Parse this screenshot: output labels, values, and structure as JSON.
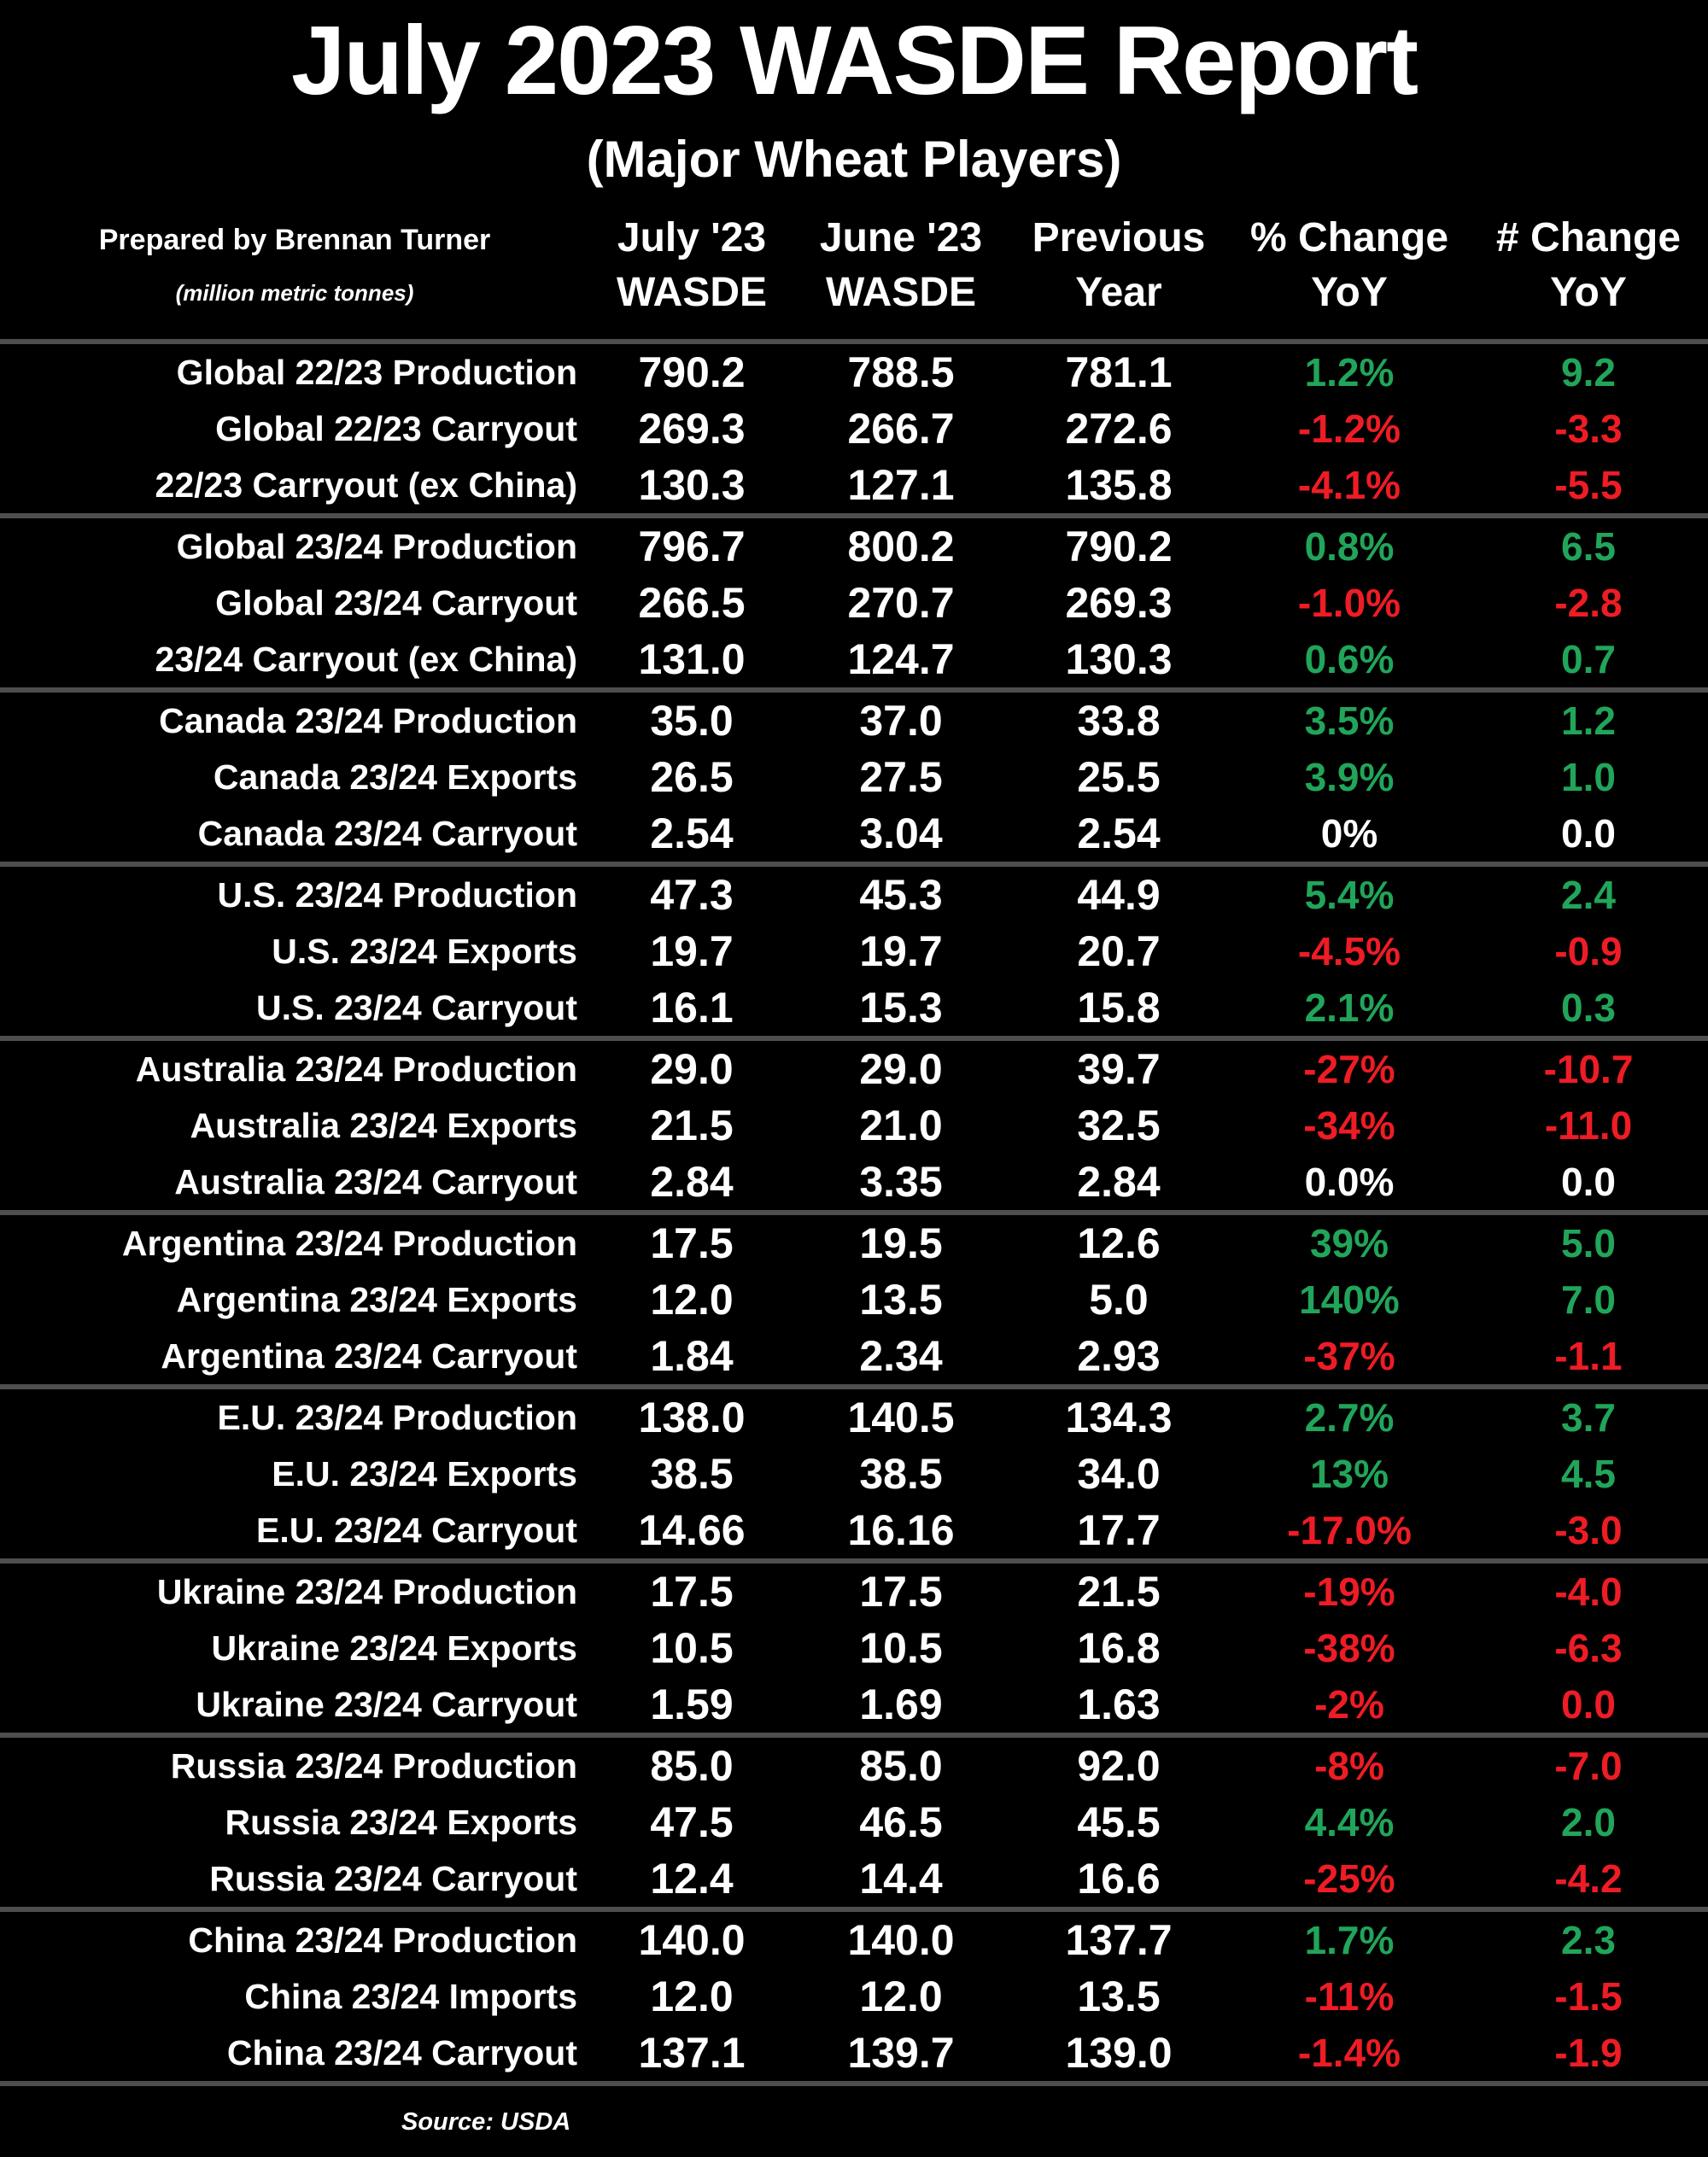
{
  "title": "July 2023 WASDE Report",
  "subtitle": "(Major Wheat Players)",
  "prepared_by": "Prepared by Brennan Turner",
  "units_note": "(million metric tonnes)",
  "source_note": "Source: USDA",
  "colors": {
    "background": "#000000",
    "text": "#ffffff",
    "positive": "#21a55a",
    "negative": "#ee1c25",
    "separator": "#4e4e4e"
  },
  "chart_data": {
    "type": "table",
    "title": "July 2023 WASDE Report (Major Wheat Players)",
    "units": "million metric tonnes",
    "column_headers": [
      {
        "line1": "July '23",
        "line2": "WASDE"
      },
      {
        "line1": "June '23",
        "line2": "WASDE"
      },
      {
        "line1": "Previous",
        "line2": "Year"
      },
      {
        "line1": "% Change",
        "line2": "YoY"
      },
      {
        "line1": "# Change",
        "line2": "YoY"
      }
    ],
    "groups": [
      {
        "rows": [
          {
            "label": "Global 22/23 Production",
            "july": "790.2",
            "june": "788.5",
            "prev": "781.1",
            "pct_change": "1.2%",
            "num_change": "9.2",
            "trend": "up"
          },
          {
            "label": "Global 22/23 Carryout",
            "july": "269.3",
            "june": "266.7",
            "prev": "272.6",
            "pct_change": "-1.2%",
            "num_change": "-3.3",
            "trend": "down"
          },
          {
            "label": "22/23 Carryout (ex China)",
            "july": "130.3",
            "june": "127.1",
            "prev": "135.8",
            "pct_change": "-4.1%",
            "num_change": "-5.5",
            "trend": "down"
          }
        ]
      },
      {
        "rows": [
          {
            "label": "Global 23/24 Production",
            "july": "796.7",
            "june": "800.2",
            "prev": "790.2",
            "pct_change": "0.8%",
            "num_change": "6.5",
            "trend": "up"
          },
          {
            "label": "Global 23/24 Carryout",
            "july": "266.5",
            "june": "270.7",
            "prev": "269.3",
            "pct_change": "-1.0%",
            "num_change": "-2.8",
            "trend": "down"
          },
          {
            "label": "23/24 Carryout (ex China)",
            "july": "131.0",
            "june": "124.7",
            "prev": "130.3",
            "pct_change": "0.6%",
            "num_change": "0.7",
            "trend": "up"
          }
        ]
      },
      {
        "rows": [
          {
            "label": "Canada 23/24 Production",
            "july": "35.0",
            "june": "37.0",
            "prev": "33.8",
            "pct_change": "3.5%",
            "num_change": "1.2",
            "trend": "up"
          },
          {
            "label": "Canada 23/24 Exports",
            "july": "26.5",
            "june": "27.5",
            "prev": "25.5",
            "pct_change": "3.9%",
            "num_change": "1.0",
            "trend": "up"
          },
          {
            "label": "Canada 23/24 Carryout",
            "july": "2.54",
            "june": "3.04",
            "prev": "2.54",
            "pct_change": "0%",
            "num_change": "0.0",
            "trend": "flat"
          }
        ]
      },
      {
        "rows": [
          {
            "label": "U.S. 23/24 Production",
            "july": "47.3",
            "june": "45.3",
            "prev": "44.9",
            "pct_change": "5.4%",
            "num_change": "2.4",
            "trend": "up"
          },
          {
            "label": "U.S. 23/24 Exports",
            "july": "19.7",
            "june": "19.7",
            "prev": "20.7",
            "pct_change": "-4.5%",
            "num_change": "-0.9",
            "trend": "down"
          },
          {
            "label": "U.S. 23/24 Carryout",
            "july": "16.1",
            "june": "15.3",
            "prev": "15.8",
            "pct_change": "2.1%",
            "num_change": "0.3",
            "trend": "up"
          }
        ]
      },
      {
        "rows": [
          {
            "label": "Australia 23/24 Production",
            "july": "29.0",
            "june": "29.0",
            "prev": "39.7",
            "pct_change": "-27%",
            "num_change": "-10.7",
            "trend": "down"
          },
          {
            "label": "Australia 23/24 Exports",
            "july": "21.5",
            "june": "21.0",
            "prev": "32.5",
            "pct_change": "-34%",
            "num_change": "-11.0",
            "trend": "down"
          },
          {
            "label": "Australia 23/24 Carryout",
            "july": "2.84",
            "june": "3.35",
            "prev": "2.84",
            "pct_change": "0.0%",
            "num_change": "0.0",
            "trend": "flat"
          }
        ]
      },
      {
        "rows": [
          {
            "label": "Argentina 23/24 Production",
            "july": "17.5",
            "june": "19.5",
            "prev": "12.6",
            "pct_change": "39%",
            "num_change": "5.0",
            "trend": "up"
          },
          {
            "label": "Argentina 23/24 Exports",
            "july": "12.0",
            "june": "13.5",
            "prev": "5.0",
            "pct_change": "140%",
            "num_change": "7.0",
            "trend": "up"
          },
          {
            "label": "Argentina 23/24 Carryout",
            "july": "1.84",
            "june": "2.34",
            "prev": "2.93",
            "pct_change": "-37%",
            "num_change": "-1.1",
            "trend": "down"
          }
        ]
      },
      {
        "rows": [
          {
            "label": "E.U. 23/24 Production",
            "july": "138.0",
            "june": "140.5",
            "prev": "134.3",
            "pct_change": "2.7%",
            "num_change": "3.7",
            "trend": "up"
          },
          {
            "label": "E.U. 23/24 Exports",
            "july": "38.5",
            "june": "38.5",
            "prev": "34.0",
            "pct_change": "13%",
            "num_change": "4.5",
            "trend": "up"
          },
          {
            "label": "E.U. 23/24 Carryout",
            "july": "14.66",
            "june": "16.16",
            "prev": "17.7",
            "pct_change": "-17.0%",
            "num_change": "-3.0",
            "trend": "down"
          }
        ]
      },
      {
        "rows": [
          {
            "label": "Ukraine 23/24 Production",
            "july": "17.5",
            "june": "17.5",
            "prev": "21.5",
            "pct_change": "-19%",
            "num_change": "-4.0",
            "trend": "down"
          },
          {
            "label": "Ukraine 23/24 Exports",
            "july": "10.5",
            "june": "10.5",
            "prev": "16.8",
            "pct_change": "-38%",
            "num_change": "-6.3",
            "trend": "down"
          },
          {
            "label": "Ukraine 23/24 Carryout",
            "july": "1.59",
            "june": "1.69",
            "prev": "1.63",
            "pct_change": "-2%",
            "num_change": "0.0",
            "trend": "down"
          }
        ]
      },
      {
        "rows": [
          {
            "label": "Russia 23/24 Production",
            "july": "85.0",
            "june": "85.0",
            "prev": "92.0",
            "pct_change": "-8%",
            "num_change": "-7.0",
            "trend": "down"
          },
          {
            "label": "Russia 23/24 Exports",
            "july": "47.5",
            "june": "46.5",
            "prev": "45.5",
            "pct_change": "4.4%",
            "num_change": "2.0",
            "trend": "up"
          },
          {
            "label": "Russia 23/24 Carryout",
            "july": "12.4",
            "june": "14.4",
            "prev": "16.6",
            "pct_change": "-25%",
            "num_change": "-4.2",
            "trend": "down"
          }
        ]
      },
      {
        "rows": [
          {
            "label": "China 23/24 Production",
            "july": "140.0",
            "june": "140.0",
            "prev": "137.7",
            "pct_change": "1.7%",
            "num_change": "2.3",
            "trend": "up"
          },
          {
            "label": "China 23/24 Imports",
            "july": "12.0",
            "june": "12.0",
            "prev": "13.5",
            "pct_change": "-11%",
            "num_change": "-1.5",
            "trend": "down"
          },
          {
            "label": "China 23/24 Carryout",
            "july": "137.1",
            "june": "139.7",
            "prev": "139.0",
            "pct_change": "-1.4%",
            "num_change": "-1.9",
            "trend": "down"
          }
        ]
      }
    ]
  }
}
